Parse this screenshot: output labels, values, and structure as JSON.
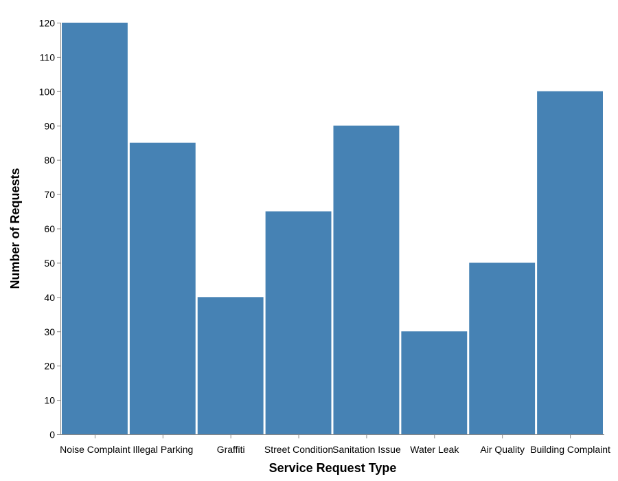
{
  "chart_data": {
    "type": "bar",
    "categories": [
      "Noise Complaint",
      "Illegal Parking",
      "Graffiti",
      "Street Condition",
      "Sanitation Issue",
      "Water Leak",
      "Air Quality",
      "Building Complaint"
    ],
    "values": [
      120,
      85,
      40,
      65,
      90,
      30,
      50,
      100
    ],
    "title": "",
    "xlabel": "Service Request Type",
    "ylabel": "Number of Requests",
    "ylim": [
      0,
      120
    ],
    "yticks": [
      0,
      10,
      20,
      30,
      40,
      50,
      60,
      70,
      80,
      90,
      100,
      110,
      120
    ],
    "grid": false,
    "legend": "none",
    "colors": {
      "bar": "#4682b4",
      "axis": "#888888",
      "text": "#000000"
    }
  }
}
